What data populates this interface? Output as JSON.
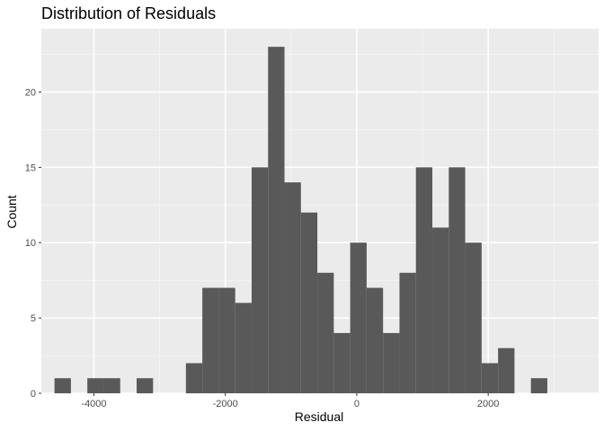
{
  "chart_data": {
    "type": "bar",
    "title": "Distribution of Residuals",
    "xlabel": "Residual",
    "ylabel": "Count",
    "xlim": [
      -4800,
      3680
    ],
    "ylim": [
      0,
      24.2
    ],
    "xticks": [
      -4000,
      -2000,
      0,
      2000
    ],
    "yticks": [
      0,
      5,
      10,
      15,
      20
    ],
    "xtick_labels": [
      "-4000",
      "-2000",
      "0",
      "2000"
    ],
    "ytick_labels": [
      "0",
      "5",
      "10",
      "15",
      "20"
    ],
    "grid": true,
    "legend": "none",
    "bin_width": 250,
    "bins": [
      {
        "x0": -4600,
        "x1": -4350,
        "count": 1
      },
      {
        "x0": -4350,
        "x1": -4100,
        "count": 0
      },
      {
        "x0": -4100,
        "x1": -3850,
        "count": 1
      },
      {
        "x0": -3850,
        "x1": -3600,
        "count": 1
      },
      {
        "x0": -3600,
        "x1": -3350,
        "count": 0
      },
      {
        "x0": -3350,
        "x1": -3100,
        "count": 1
      },
      {
        "x0": -3100,
        "x1": -2850,
        "count": 0
      },
      {
        "x0": -2850,
        "x1": -2600,
        "count": 0
      },
      {
        "x0": -2600,
        "x1": -2350,
        "count": 2
      },
      {
        "x0": -2350,
        "x1": -2100,
        "count": 7
      },
      {
        "x0": -2100,
        "x1": -1850,
        "count": 7
      },
      {
        "x0": -1850,
        "x1": -1600,
        "count": 6
      },
      {
        "x0": -1600,
        "x1": -1350,
        "count": 15
      },
      {
        "x0": -1350,
        "x1": -1100,
        "count": 23
      },
      {
        "x0": -1100,
        "x1": -850,
        "count": 14
      },
      {
        "x0": -850,
        "x1": -600,
        "count": 12
      },
      {
        "x0": -600,
        "x1": -350,
        "count": 8
      },
      {
        "x0": -350,
        "x1": -100,
        "count": 4
      },
      {
        "x0": -100,
        "x1": 150,
        "count": 10
      },
      {
        "x0": 150,
        "x1": 400,
        "count": 7
      },
      {
        "x0": 400,
        "x1": 650,
        "count": 4
      },
      {
        "x0": 650,
        "x1": 900,
        "count": 8
      },
      {
        "x0": 900,
        "x1": 1150,
        "count": 15
      },
      {
        "x0": 1150,
        "x1": 1400,
        "count": 11
      },
      {
        "x0": 1400,
        "x1": 1650,
        "count": 15
      },
      {
        "x0": 1650,
        "x1": 1900,
        "count": 10
      },
      {
        "x0": 1900,
        "x1": 2150,
        "count": 2
      },
      {
        "x0": 2150,
        "x1": 2400,
        "count": 3
      },
      {
        "x0": 2400,
        "x1": 2650,
        "count": 0
      },
      {
        "x0": 2650,
        "x1": 2900,
        "count": 1
      }
    ],
    "colors": {
      "panel": "#ebebeb",
      "grid_major": "#ffffff",
      "grid_minor": "#f5f5f5",
      "bar": "#595959",
      "tick": "#333333"
    }
  }
}
